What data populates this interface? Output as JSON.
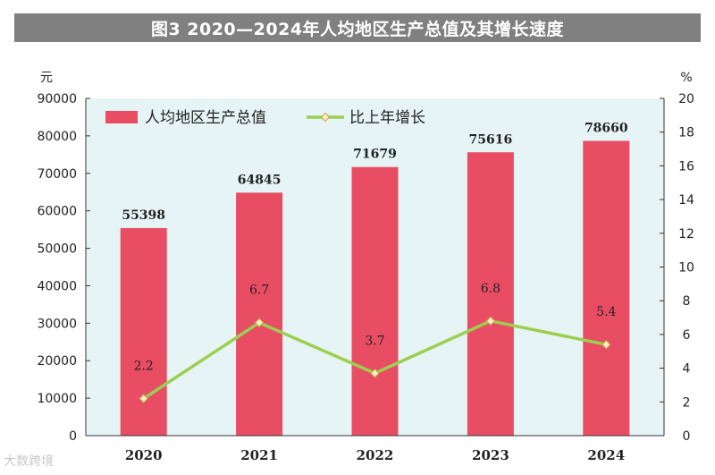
{
  "chart_data": {
    "type": "bar",
    "title": "图3  2020—2024年人均地区生产总值及其增长速度",
    "categories": [
      "2020",
      "2021",
      "2022",
      "2023",
      "2024"
    ],
    "series": [
      {
        "name": "人均地区生产总值",
        "type": "bar",
        "axis": "left",
        "values": [
          55398,
          64845,
          71679,
          75616,
          78660
        ]
      },
      {
        "name": "比上年增长",
        "type": "line",
        "axis": "right",
        "values": [
          2.2,
          6.7,
          3.7,
          6.8,
          5.4
        ]
      }
    ],
    "y_left": {
      "unit": "元",
      "range": [
        0,
        90000
      ],
      "ticks": [
        0,
        10000,
        20000,
        30000,
        40000,
        50000,
        60000,
        70000,
        80000,
        90000
      ]
    },
    "y_right": {
      "unit": "%",
      "range": [
        0,
        20
      ],
      "ticks": [
        0,
        2,
        4,
        6,
        8,
        10,
        12,
        14,
        16,
        18,
        20
      ]
    },
    "legend_position": "top-left",
    "colors": {
      "bar": "#e84d63",
      "line": "#9ccf4f",
      "marker_fill": "#f7efc6",
      "plot_bg": "#e6f4f5",
      "title_bg": "#808080"
    }
  },
  "watermark": "大数跨境"
}
